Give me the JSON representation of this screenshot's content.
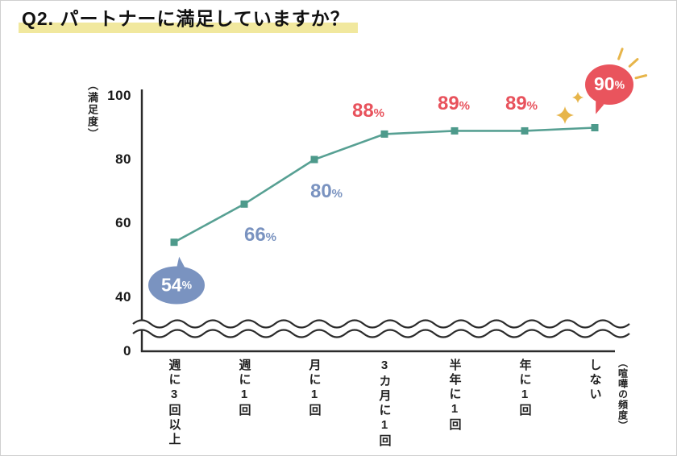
{
  "title": "Q2. パートナーに満足していますか？",
  "chart_data": {
    "type": "line",
    "categories": [
      "週に3回以上",
      "週に1回",
      "月に1回",
      "3カ月に1回",
      "半年に1回",
      "年に1回",
      "しない"
    ],
    "values": [
      54,
      66,
      80,
      88,
      89,
      89,
      90
    ],
    "value_labels": [
      "54%",
      "66%",
      "80%",
      "88%",
      "89%",
      "89%",
      "90%"
    ],
    "label_styles": [
      "bubble-blue",
      "text-blue",
      "text-blue",
      "text-red",
      "text-red",
      "text-red",
      "bubble-red"
    ],
    "ylabel": "（満足度）",
    "xlabel_right": "（喧嘩の頻度）",
    "yticks": [
      0,
      40,
      60,
      80,
      100
    ],
    "ylim": [
      0,
      100
    ],
    "axis_break": true,
    "grid": false,
    "legend": "none",
    "colors": {
      "line": "#57a093",
      "marker": "#4d9a8b",
      "blue": "#7a93c0",
      "red": "#e9545d",
      "highlight": "#f1e89e",
      "sparkle": "#e7b54a",
      "axis": "#2b2b2b"
    },
    "icons": {
      "sparkle": "four-point-star",
      "burst": "radiating-strokes"
    }
  }
}
